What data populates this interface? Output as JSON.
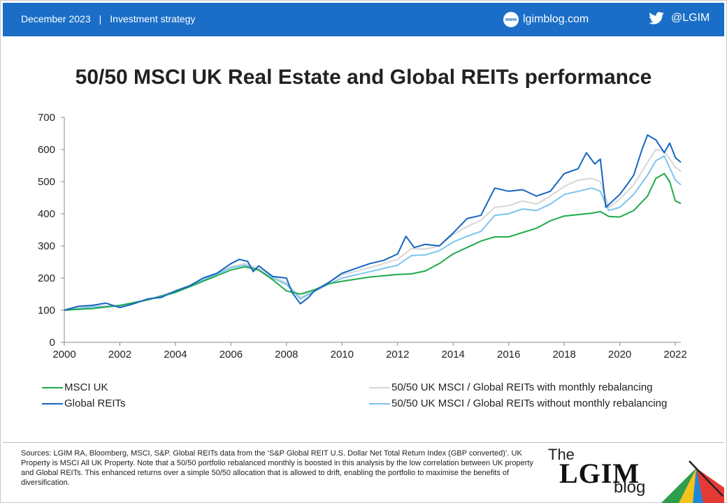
{
  "header": {
    "date": "December 2023",
    "separator": "|",
    "category": "Investment strategy",
    "website": "lgimblog.com",
    "globe_icon_text": "www",
    "twitter_handle": "@LGIM",
    "bar_color": "#1a6ec7"
  },
  "footer": {
    "sources": "Sources: LGIM RA, Bloomberg, MSCI, S&P. Global REITs data from the ‘S&P Global REIT U.S. Dollar Net Total Return Index (GBP converted)’. UK Property is MSCI All UK Property. Note that a 50/50 portfolio rebalanced monthly is boosted in this analysis by the low correlation between UK property and Global REITs. This enhanced returns over a simple 50/50 allocation that is allowed to drift, enabling the portfolio to maximise the benefits of diversification.",
    "logo": {
      "the": "The",
      "lgim": "LGIM",
      "blog": "blog"
    }
  },
  "chart_data": {
    "type": "line",
    "title": "50/50 MSCI UK Real Estate and Global REITs performance",
    "xlabel": "",
    "ylabel": "",
    "xlim": [
      2000,
      2022.2
    ],
    "ylim": [
      0,
      700
    ],
    "x_ticks": [
      "2000",
      "2002",
      "2004",
      "2006",
      "2008",
      "2010",
      "2012",
      "2014",
      "2016",
      "2018",
      "2020",
      "2022"
    ],
    "y_ticks": [
      "0",
      "100",
      "200",
      "300",
      "400",
      "500",
      "600",
      "700"
    ],
    "grid": false,
    "legend_position": "bottom",
    "series": [
      {
        "name": "MSCI UK",
        "color": "#1eaa4a",
        "points": [
          [
            2000,
            100
          ],
          [
            2001,
            105
          ],
          [
            2002,
            115
          ],
          [
            2003,
            132
          ],
          [
            2004,
            155
          ],
          [
            2005,
            190
          ],
          [
            2006,
            225
          ],
          [
            2006.5,
            235
          ],
          [
            2007,
            225
          ],
          [
            2007.5,
            195
          ],
          [
            2008,
            160
          ],
          [
            2008.5,
            150
          ],
          [
            2009,
            163
          ],
          [
            2009.5,
            182
          ],
          [
            2010,
            190
          ],
          [
            2011,
            203
          ],
          [
            2012,
            211
          ],
          [
            2012.5,
            213
          ],
          [
            2013,
            222
          ],
          [
            2013.5,
            245
          ],
          [
            2014,
            275
          ],
          [
            2014.5,
            295
          ],
          [
            2015,
            315
          ],
          [
            2015.5,
            328
          ],
          [
            2016,
            328
          ],
          [
            2017,
            355
          ],
          [
            2017.5,
            378
          ],
          [
            2018,
            393
          ],
          [
            2019,
            402
          ],
          [
            2019.3,
            407
          ],
          [
            2019.6,
            392
          ],
          [
            2020,
            390
          ],
          [
            2020.5,
            410
          ],
          [
            2021,
            455
          ],
          [
            2021.3,
            510
          ],
          [
            2021.6,
            525
          ],
          [
            2021.8,
            500
          ],
          [
            2022,
            440
          ],
          [
            2022.2,
            432
          ]
        ]
      },
      {
        "name": "Global REITs",
        "color": "#1565c0",
        "points": [
          [
            2000,
            100
          ],
          [
            2000.5,
            112
          ],
          [
            2001,
            115
          ],
          [
            2001.5,
            122
          ],
          [
            2002,
            108
          ],
          [
            2002.5,
            120
          ],
          [
            2003,
            135
          ],
          [
            2003.5,
            140
          ],
          [
            2004,
            160
          ],
          [
            2004.5,
            175
          ],
          [
            2005,
            200
          ],
          [
            2005.5,
            215
          ],
          [
            2006,
            245
          ],
          [
            2006.3,
            258
          ],
          [
            2006.6,
            252
          ],
          [
            2006.8,
            220
          ],
          [
            2007,
            238
          ],
          [
            2007.5,
            205
          ],
          [
            2008,
            200
          ],
          [
            2008.2,
            155
          ],
          [
            2008.5,
            120
          ],
          [
            2008.8,
            140
          ],
          [
            2009,
            160
          ],
          [
            2009.5,
            185
          ],
          [
            2010,
            215
          ],
          [
            2010.5,
            230
          ],
          [
            2011,
            245
          ],
          [
            2011.5,
            255
          ],
          [
            2012,
            275
          ],
          [
            2012.3,
            330
          ],
          [
            2012.6,
            295
          ],
          [
            2013,
            305
          ],
          [
            2013.5,
            300
          ],
          [
            2014,
            340
          ],
          [
            2014.5,
            385
          ],
          [
            2015,
            395
          ],
          [
            2015.5,
            480
          ],
          [
            2016,
            470
          ],
          [
            2016.5,
            475
          ],
          [
            2017,
            455
          ],
          [
            2017.5,
            470
          ],
          [
            2018,
            525
          ],
          [
            2018.5,
            540
          ],
          [
            2018.8,
            590
          ],
          [
            2019.1,
            555
          ],
          [
            2019.3,
            570
          ],
          [
            2019.5,
            420
          ],
          [
            2020,
            460
          ],
          [
            2020.3,
            495
          ],
          [
            2020.5,
            520
          ],
          [
            2020.8,
            600
          ],
          [
            2021,
            645
          ],
          [
            2021.3,
            630
          ],
          [
            2021.6,
            590
          ],
          [
            2021.8,
            620
          ],
          [
            2022,
            575
          ],
          [
            2022.2,
            560
          ]
        ]
      },
      {
        "name": "50/50 UK MSCI / Global REITs with monthly rebalancing",
        "color": "#d6d6d6",
        "points": [
          [
            2000,
            100
          ],
          [
            2000.5,
            106
          ],
          [
            2001,
            112
          ],
          [
            2002,
            115
          ],
          [
            2003,
            133
          ],
          [
            2004,
            160
          ],
          [
            2005,
            195
          ],
          [
            2006,
            235
          ],
          [
            2006.5,
            245
          ],
          [
            2007,
            230
          ],
          [
            2007.5,
            205
          ],
          [
            2008,
            185
          ],
          [
            2008.5,
            140
          ],
          [
            2009,
            162
          ],
          [
            2009.5,
            185
          ],
          [
            2010,
            210
          ],
          [
            2011,
            232
          ],
          [
            2012,
            258
          ],
          [
            2012.5,
            292
          ],
          [
            2013,
            290
          ],
          [
            2013.5,
            300
          ],
          [
            2014,
            335
          ],
          [
            2014.5,
            360
          ],
          [
            2015,
            380
          ],
          [
            2015.5,
            420
          ],
          [
            2016,
            425
          ],
          [
            2016.5,
            440
          ],
          [
            2017,
            430
          ],
          [
            2017.5,
            455
          ],
          [
            2018,
            485
          ],
          [
            2018.5,
            505
          ],
          [
            2019,
            510
          ],
          [
            2019.3,
            500
          ],
          [
            2019.6,
            420
          ],
          [
            2020,
            445
          ],
          [
            2020.5,
            490
          ],
          [
            2021,
            560
          ],
          [
            2021.3,
            600
          ],
          [
            2021.6,
            595
          ],
          [
            2022,
            545
          ],
          [
            2022.2,
            532
          ]
        ]
      },
      {
        "name": "50/50 UK MSCI / Global REITs without monthly rebalancing",
        "color": "#7cc4ef",
        "points": [
          [
            2000,
            100
          ],
          [
            2000.5,
            105
          ],
          [
            2001,
            110
          ],
          [
            2002,
            113
          ],
          [
            2003,
            132
          ],
          [
            2004,
            158
          ],
          [
            2005,
            193
          ],
          [
            2006,
            232
          ],
          [
            2006.5,
            240
          ],
          [
            2007,
            225
          ],
          [
            2007.5,
            200
          ],
          [
            2008,
            180
          ],
          [
            2008.5,
            135
          ],
          [
            2009,
            158
          ],
          [
            2009.5,
            180
          ],
          [
            2010,
            200
          ],
          [
            2011,
            220
          ],
          [
            2012,
            240
          ],
          [
            2012.5,
            270
          ],
          [
            2013,
            272
          ],
          [
            2013.5,
            285
          ],
          [
            2014,
            312
          ],
          [
            2014.5,
            330
          ],
          [
            2015,
            345
          ],
          [
            2015.5,
            395
          ],
          [
            2016,
            400
          ],
          [
            2016.5,
            415
          ],
          [
            2017,
            410
          ],
          [
            2017.5,
            430
          ],
          [
            2018,
            460
          ],
          [
            2018.5,
            470
          ],
          [
            2019,
            480
          ],
          [
            2019.3,
            470
          ],
          [
            2019.6,
            410
          ],
          [
            2020,
            420
          ],
          [
            2020.5,
            460
          ],
          [
            2021,
            520
          ],
          [
            2021.3,
            565
          ],
          [
            2021.6,
            580
          ],
          [
            2022,
            505
          ],
          [
            2022.2,
            490
          ]
        ]
      }
    ]
  }
}
